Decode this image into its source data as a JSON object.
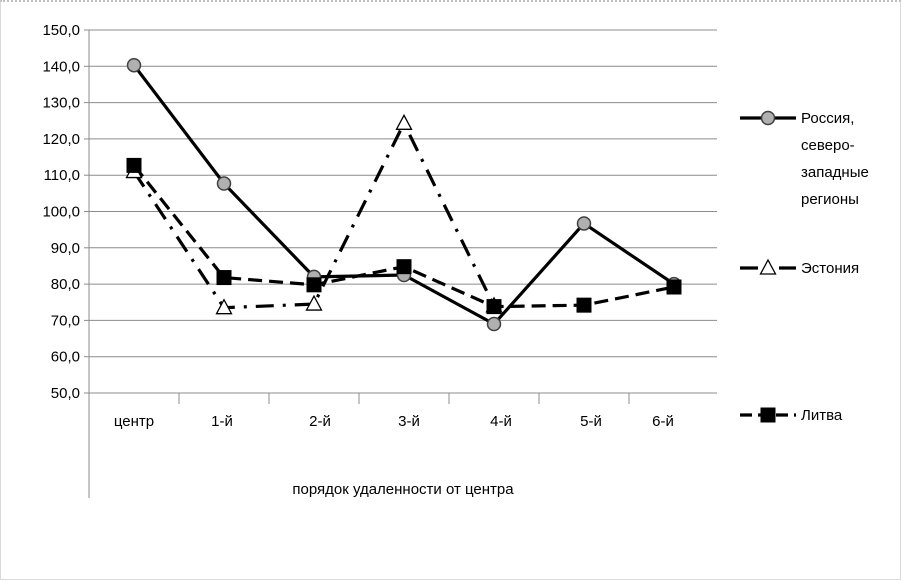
{
  "chart_data": {
    "type": "line",
    "title": "",
    "xlabel": "порядок удаленности от центра",
    "ylabel": "",
    "categories": [
      "центр",
      "1-й",
      "2-й",
      "3-й",
      "4-й",
      "5-й",
      "6-й"
    ],
    "ylim": [
      50,
      150
    ],
    "ytick_step": 10,
    "ytick_labels": [
      "50,0",
      "60,0",
      "70,0",
      "80,0",
      "90,0",
      "100,0",
      "110,0",
      "120,0",
      "130,0",
      "140,0",
      "150,0"
    ],
    "grid": true,
    "legend_position": "right",
    "series": [
      {
        "name_lines": [
          "Россия,",
          "северо-",
          "западные",
          "регионы"
        ],
        "values": [
          140.3,
          107.7,
          82.0,
          82.5,
          69.0,
          96.7,
          80.0
        ],
        "line_style": "solid",
        "marker": "circle",
        "marker_color": "#b0b0b0"
      },
      {
        "name_lines": [
          "Эстония"
        ],
        "values": [
          111.0,
          73.5,
          74.5,
          124.3,
          74.0,
          null,
          null
        ],
        "line_style": "dash-dot",
        "marker": "triangle",
        "marker_color": "#ffffff"
      },
      {
        "name_lines": [
          "Литва"
        ],
        "values": [
          112.7,
          81.8,
          79.8,
          84.8,
          73.8,
          74.2,
          79.2
        ],
        "line_style": "dashed",
        "marker": "square",
        "marker_color": "#000000"
      }
    ]
  }
}
